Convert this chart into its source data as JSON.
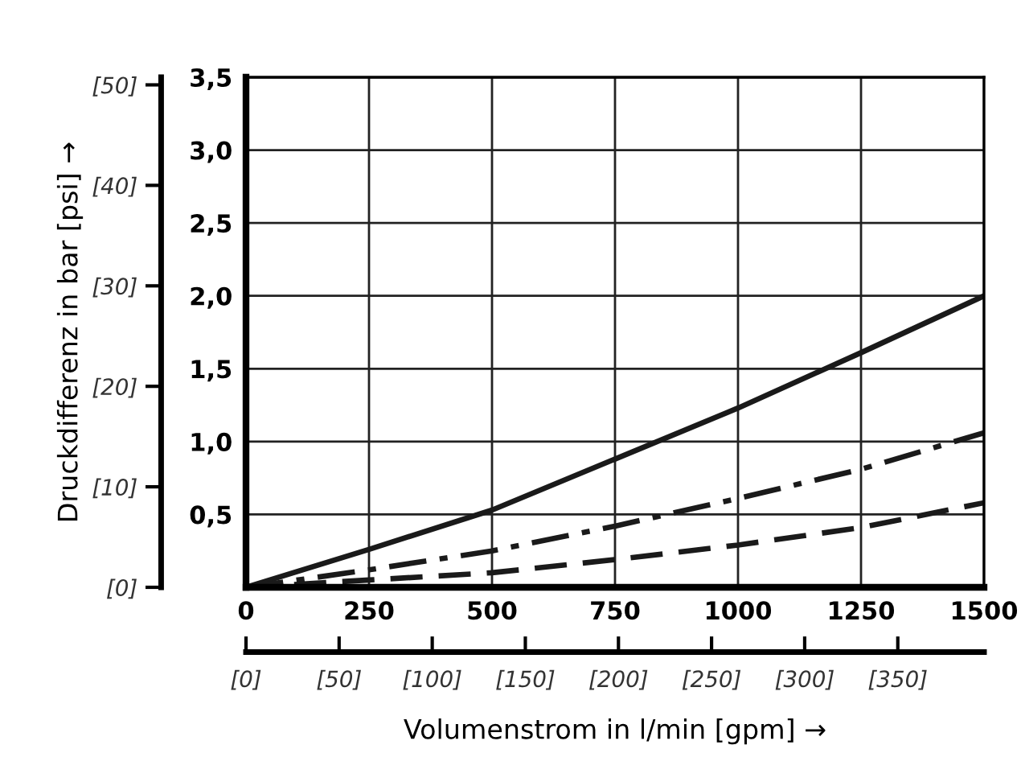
{
  "chart_data": {
    "type": "line",
    "xlabel": "Volumenstrom in l/min [gpm] →",
    "y2label": "Druckdifferenz in bar [psi] →",
    "x": [
      0,
      250,
      500,
      750,
      1000,
      1250,
      1500
    ],
    "series": [
      {
        "color": "#1a1a1a",
        "line_style": "solid",
        "values": [
          0,
          0.26,
          0.53,
          0.88,
          1.23,
          1.61,
          2.0
        ]
      },
      {
        "color": "#1a1a1a",
        "line_style": "dashdot",
        "values": [
          0,
          0.12,
          0.25,
          0.42,
          0.61,
          0.81,
          1.06
        ]
      },
      {
        "color": "#1a1a1a",
        "line_style": "dashed",
        "values": [
          0,
          0.05,
          0.1,
          0.19,
          0.29,
          0.41,
          0.58
        ]
      }
    ],
    "xlim": [
      0,
      1500
    ],
    "xticks": [
      0,
      250,
      500,
      750,
      1000,
      1250,
      1500
    ],
    "ylim": [
      0,
      3.5
    ],
    "yticks": [
      {
        "value": 0.5,
        "label": "0,5"
      },
      {
        "value": 1.0,
        "label": "1,0"
      },
      {
        "value": 1.5,
        "label": "1,5"
      },
      {
        "value": 2.0,
        "label": "2,0"
      },
      {
        "value": 2.5,
        "label": "2,5"
      },
      {
        "value": 3.0,
        "label": "3,0"
      },
      {
        "value": 3.5,
        "label": "3,5"
      }
    ],
    "y2lim": [
      0,
      50.76
    ],
    "y2ticks": [
      {
        "value": 0,
        "label": "[0]"
      },
      {
        "value": 10,
        "label": "[10]"
      },
      {
        "value": 20,
        "label": "[20]"
      },
      {
        "value": 30,
        "label": "[30]"
      },
      {
        "value": 40,
        "label": "[40]"
      },
      {
        "value": 50,
        "label": "[50]"
      }
    ],
    "x2lim": [
      0,
      396.3
    ],
    "x2ticks": [
      {
        "value": 0,
        "label": "[0]"
      },
      {
        "value": 50,
        "label": "[50]"
      },
      {
        "value": 100,
        "label": "[100]"
      },
      {
        "value": 150,
        "label": "[150]"
      },
      {
        "value": 200,
        "label": "[200]"
      },
      {
        "value": 250,
        "label": "[250]"
      },
      {
        "value": 300,
        "label": "[300]"
      },
      {
        "value": 350,
        "label": "[350]"
      }
    ],
    "grid": true,
    "legend": false
  }
}
